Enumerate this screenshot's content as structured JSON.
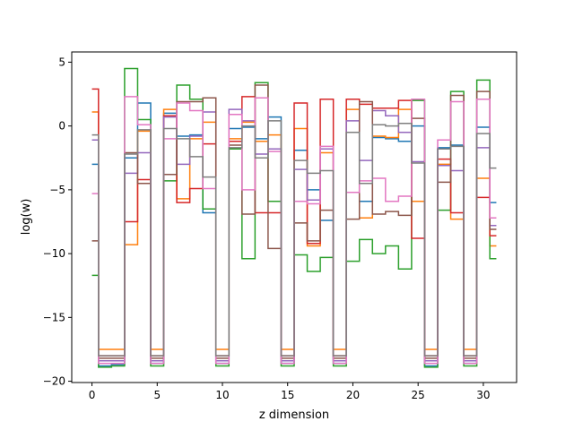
{
  "chart_data": {
    "type": "line",
    "step": "mid",
    "xlabel": "z dimension",
    "ylabel": "log(w)",
    "xlim": [
      -1.55,
      32.55
    ],
    "ylim": [
      -20.1,
      5.8
    ],
    "xticks": [
      0,
      5,
      10,
      15,
      20,
      25,
      30
    ],
    "yticks": [
      -20,
      -15,
      -10,
      -5,
      0,
      5
    ],
    "x": [
      0,
      1,
      2,
      3,
      4,
      5,
      6,
      7,
      8,
      9,
      10,
      11,
      12,
      13,
      14,
      15,
      16,
      17,
      18,
      19,
      20,
      21,
      22,
      23,
      24,
      25,
      26,
      27,
      28,
      29,
      30,
      31
    ],
    "series": [
      {
        "color": "#1f77b4",
        "values": [
          -3.0,
          -18.8,
          -18.7,
          -2.5,
          1.8,
          -18.6,
          1.0,
          -0.8,
          -0.7,
          -6.8,
          -18.6,
          -0.2,
          -0.1,
          -1.0,
          0.7,
          -18.6,
          -1.9,
          -5.0,
          -7.4,
          -18.6,
          -0.5,
          -5.9,
          -0.9,
          -1.0,
          -1.2,
          0.0,
          -18.8,
          -1.7,
          -1.5,
          -18.6,
          -0.1,
          -6.0
        ]
      },
      {
        "color": "#ff7f0e",
        "values": [
          1.1,
          -17.5,
          -17.5,
          -9.3,
          -0.4,
          -17.5,
          1.3,
          -5.7,
          -1.0,
          0.3,
          -17.5,
          -1.0,
          0.3,
          -1.2,
          -0.7,
          -17.5,
          -0.2,
          -9.4,
          -2.1,
          -17.5,
          1.3,
          -7.2,
          -0.8,
          -0.9,
          1.3,
          -5.9,
          -17.5,
          -3.0,
          -7.3,
          -17.5,
          -4.1,
          -9.4
        ]
      },
      {
        "color": "#2ca02c",
        "values": [
          -11.7,
          -18.9,
          -18.8,
          4.5,
          0.5,
          -18.8,
          -4.3,
          3.2,
          2.1,
          -6.5,
          -18.8,
          -1.8,
          -10.4,
          3.4,
          -5.9,
          -18.8,
          -10.1,
          -11.4,
          -10.3,
          -18.8,
          -10.6,
          -8.9,
          -10.0,
          -9.4,
          -11.2,
          2.0,
          -18.9,
          -6.6,
          2.7,
          -18.8,
          3.6,
          -10.4
        ]
      },
      {
        "color": "#d62728",
        "values": [
          2.9,
          -18.0,
          -18.0,
          -7.5,
          -4.2,
          -18.0,
          0.8,
          -6.0,
          -4.9,
          -1.4,
          -18.0,
          -1.2,
          2.3,
          -6.8,
          -6.8,
          -18.0,
          1.8,
          -9.2,
          2.1,
          -18.0,
          2.1,
          1.7,
          1.4,
          1.4,
          2.0,
          -8.8,
          -18.0,
          -2.6,
          -6.8,
          -18.0,
          -5.6,
          -8.6
        ]
      },
      {
        "color": "#9467bd",
        "values": [
          -1.1,
          -18.4,
          -18.4,
          -3.7,
          -2.1,
          -18.4,
          0.7,
          -3.0,
          -0.8,
          1.1,
          -18.4,
          1.3,
          0.4,
          -2.2,
          -1.8,
          -18.4,
          -3.4,
          -5.8,
          -1.8,
          -18.4,
          0.4,
          -2.7,
          1.2,
          0.8,
          -0.5,
          -2.8,
          -18.4,
          -3.1,
          -3.5,
          -18.4,
          -1.7,
          -7.8
        ]
      },
      {
        "color": "#8c564b",
        "values": [
          -9.0,
          -18.2,
          -18.2,
          -2.1,
          -4.5,
          -18.2,
          -3.8,
          1.9,
          1.9,
          2.2,
          -18.2,
          -1.5,
          -6.9,
          3.2,
          -9.6,
          -18.2,
          -7.6,
          -9.0,
          -6.6,
          -18.2,
          -7.3,
          1.9,
          -6.9,
          -6.7,
          -7.0,
          0.6,
          -18.2,
          -4.4,
          2.4,
          -18.2,
          2.7,
          -8.1
        ]
      },
      {
        "color": "#e377c2",
        "values": [
          -5.3,
          -18.6,
          -18.6,
          2.3,
          0.1,
          -18.6,
          -1.0,
          1.8,
          1.2,
          -4.9,
          -18.6,
          0.9,
          -5.0,
          2.2,
          -2.0,
          -18.6,
          -5.9,
          -6.1,
          -1.6,
          -18.6,
          -5.2,
          -4.3,
          -4.1,
          -5.9,
          -5.5,
          2.1,
          -18.6,
          -1.1,
          1.9,
          -18.6,
          2.1,
          -7.2
        ]
      },
      {
        "color": "#7f7f7f",
        "values": [
          -0.7,
          -18.0,
          -18.0,
          -2.2,
          -0.3,
          -18.0,
          -0.2,
          -1.0,
          -2.4,
          -4.0,
          -18.0,
          -1.7,
          0.0,
          -2.5,
          0.4,
          -18.0,
          -2.7,
          -3.7,
          -3.5,
          -18.0,
          -0.5,
          -4.5,
          0.1,
          0.0,
          0.2,
          -2.9,
          -18.0,
          -1.8,
          -1.6,
          -18.0,
          -0.6,
          -3.3
        ]
      }
    ]
  }
}
